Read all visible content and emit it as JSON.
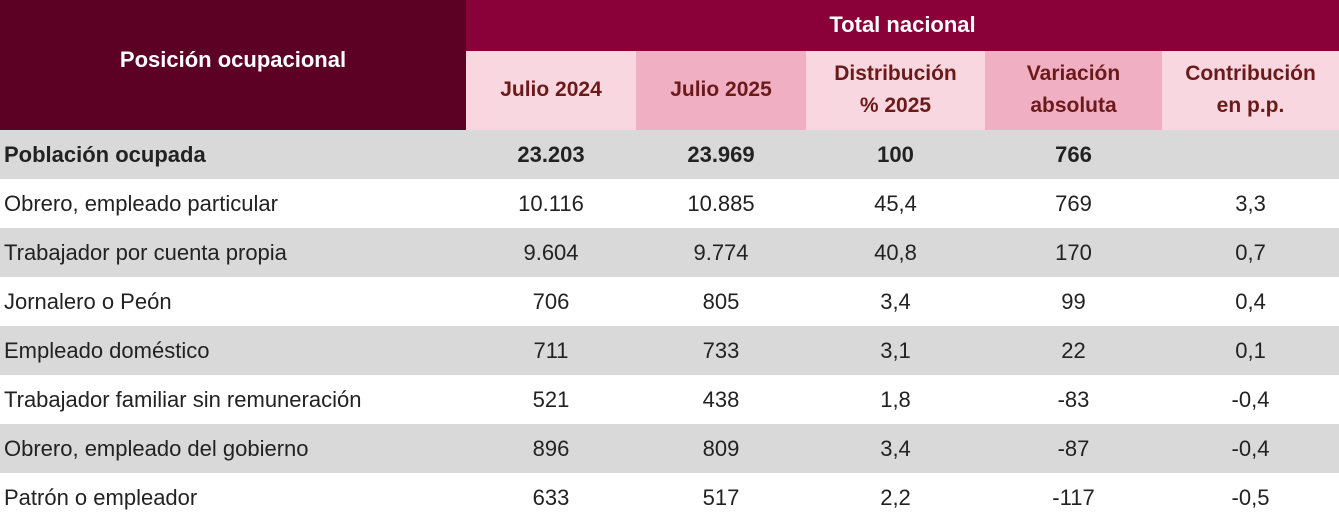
{
  "header": {
    "row_label": "Posición ocupacional",
    "group": "Total nacional",
    "columns": [
      "Julio 2024",
      "Julio 2025",
      "Distribución\n% 2025",
      "Variación\nabsoluta",
      "Contribución\nen p.p."
    ]
  },
  "rows": [
    {
      "label": "Población ocupada",
      "values": [
        "23.203",
        "23.969",
        "100",
        "766",
        ""
      ]
    },
    {
      "label": "Obrero, empleado particular",
      "values": [
        "10.116",
        "10.885",
        "45,4",
        "769",
        "3,3"
      ]
    },
    {
      "label": "Trabajador por cuenta propia",
      "values": [
        "9.604",
        "9.774",
        "40,8",
        "170",
        "0,7"
      ]
    },
    {
      "label": "Jornalero o Peón",
      "values": [
        "706",
        "805",
        "3,4",
        "99",
        "0,4"
      ]
    },
    {
      "label": "Empleado doméstico",
      "values": [
        "711",
        "733",
        "3,1",
        "22",
        "0,1"
      ]
    },
    {
      "label": "Trabajador familiar sin remuneración",
      "values": [
        "521",
        "438",
        "1,8",
        "-83",
        "-0,4"
      ]
    },
    {
      "label": "Obrero, empleado del gobierno",
      "values": [
        "896",
        "809",
        "3,4",
        "-87",
        "-0,4"
      ]
    },
    {
      "label": "Patrón o empleador",
      "values": [
        "633",
        "517",
        "2,2",
        "-117",
        "-0,5"
      ]
    }
  ],
  "colors": {
    "header_left": "#5C0024",
    "header_top": "#8A0038",
    "sub_light": "#F8D7E0",
    "sub_dark": "#F0AFC3",
    "row_gray": "#D9D9D9"
  }
}
